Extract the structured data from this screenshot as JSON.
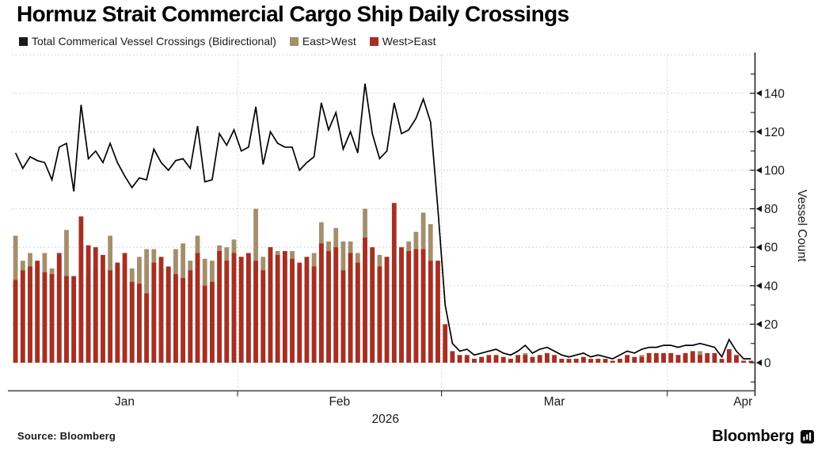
{
  "title": "Hormuz Strait Commercial Cargo Ship Daily Crossings",
  "legend": {
    "total_label": "Total Commerical Vessel Crossings (Bidirectional)",
    "east_label": "East>West",
    "west_label": "West>East"
  },
  "source": "Source: Bloomberg",
  "brand": "Bloomberg",
  "colors": {
    "total_line": "#000000",
    "east_bar": "#A48F6C",
    "west_bar": "#A62F23",
    "grid": "#c8c8c8",
    "axis": "#3d3d3d",
    "tick_text": "#1a1a1a"
  },
  "chart_data": {
    "type": "bar",
    "subtype": "daily bars (East>West behind, West>East in front) with total line overlay",
    "title": "Hormuz Strait Commercial Cargo Ship Daily Crossings",
    "ylabel": "Vessel Count",
    "xlabel": "2026",
    "x_start": "2026-01-01",
    "x_end": "2026-04-12",
    "n_days": 102,
    "ylim": [
      0,
      160
    ],
    "yticks": [
      0,
      20,
      40,
      60,
      80,
      100,
      120,
      140
    ],
    "grid": "dotted",
    "legend_position": "top",
    "month_start_days": [
      31,
      59,
      90
    ],
    "x_tick_labels": [
      {
        "label": "Jan",
        "day": 15.5
      },
      {
        "label": "Feb",
        "day": 45.0
      },
      {
        "label": "Mar",
        "day": 74.5
      },
      {
        "label": "Apr",
        "day": 100.4
      }
    ],
    "year_label": "2026",
    "year_label_day": 51.3,
    "series": [
      {
        "name": "Total Commerical Vessel Crossings (Bidirectional)",
        "type": "line",
        "color": "#000000",
        "values": [
          109,
          101,
          107,
          105,
          104,
          95,
          112,
          114,
          89,
          134,
          106,
          110,
          104,
          114,
          104,
          97,
          91,
          96,
          95,
          111,
          104,
          100,
          105,
          106,
          101,
          123,
          94,
          95,
          119,
          113,
          121,
          110,
          112,
          133,
          103,
          120,
          114,
          112,
          112,
          100,
          104,
          107,
          135,
          121,
          130,
          111,
          120,
          109,
          145,
          119,
          106,
          110,
          135,
          119,
          121,
          127,
          137,
          125,
          80,
          30,
          10,
          6,
          7,
          4,
          5,
          6,
          7,
          5,
          4,
          6,
          9,
          5,
          7,
          8,
          6,
          4,
          3,
          4,
          5,
          3,
          4,
          3,
          2,
          4,
          6,
          5,
          7,
          8,
          8,
          9,
          9,
          8,
          9,
          9,
          10,
          9,
          8,
          3,
          12,
          6,
          2,
          2
        ]
      },
      {
        "name": "East>West",
        "type": "bar",
        "color": "#A48F6C",
        "values": [
          66,
          53,
          57,
          52,
          57,
          49,
          55,
          69,
          44,
          58,
          45,
          50,
          48,
          66,
          52,
          40,
          49,
          55,
          59,
          59,
          49,
          50,
          59,
          62,
          53,
          66,
          54,
          53,
          61,
          60,
          64,
          55,
          55,
          80,
          55,
          60,
          58,
          54,
          58,
          48,
          49,
          57,
          73,
          63,
          70,
          63,
          63,
          57,
          80,
          59,
          56,
          55,
          52,
          59,
          63,
          68,
          78,
          72,
          27,
          10,
          4,
          2,
          3,
          2,
          2,
          2,
          3,
          2,
          2,
          2,
          5,
          2,
          3,
          3,
          2,
          2,
          1,
          2,
          2,
          1,
          2,
          1,
          1,
          2,
          2,
          2,
          4,
          3,
          3,
          4,
          4,
          4,
          4,
          3,
          6,
          4,
          3,
          1,
          5,
          2,
          1,
          1
        ]
      },
      {
        "name": "West>East",
        "type": "bar",
        "color": "#A62F23",
        "values": [
          43,
          48,
          50,
          53,
          47,
          46,
          57,
          45,
          45,
          76,
          61,
          60,
          56,
          48,
          52,
          57,
          42,
          41,
          36,
          52,
          55,
          50,
          46,
          44,
          48,
          57,
          40,
          42,
          58,
          53,
          57,
          55,
          57,
          53,
          48,
          60,
          56,
          58,
          54,
          52,
          55,
          50,
          62,
          58,
          60,
          48,
          57,
          52,
          65,
          60,
          50,
          55,
          83,
          60,
          58,
          59,
          59,
          53,
          53,
          20,
          6,
          4,
          4,
          2,
          3,
          4,
          4,
          3,
          2,
          4,
          4,
          3,
          4,
          5,
          4,
          2,
          2,
          2,
          3,
          2,
          2,
          2,
          1,
          2,
          4,
          3,
          3,
          5,
          5,
          5,
          5,
          4,
          5,
          6,
          4,
          5,
          5,
          2,
          7,
          4,
          1,
          1
        ]
      }
    ]
  }
}
